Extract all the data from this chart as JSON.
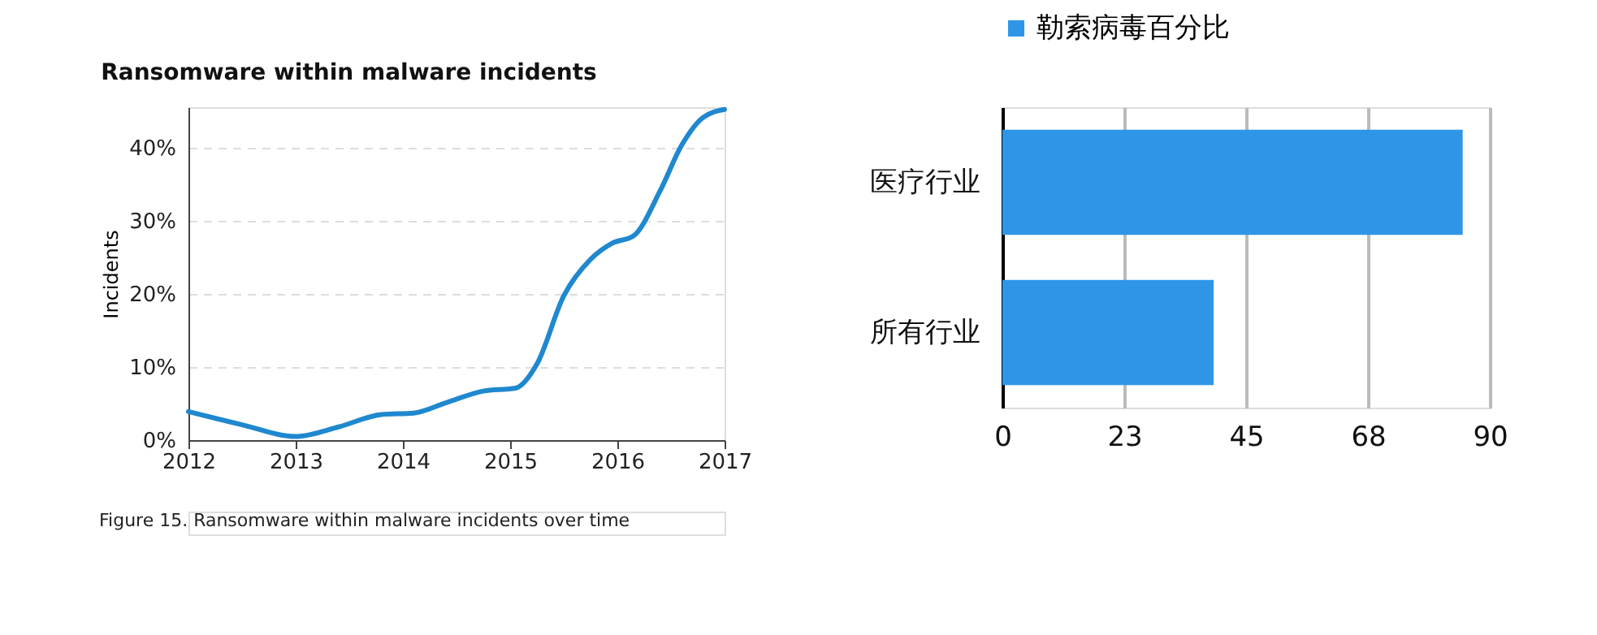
{
  "chart_data": [
    {
      "type": "line",
      "title": "Ransomware within malware incidents",
      "ylabel": "Incidents",
      "x": [
        2012,
        2012.5,
        2013,
        2013.4,
        2013.8,
        2014.1,
        2014.4,
        2014.75,
        2015.05,
        2015.25,
        2015.5,
        2015.75,
        2015.95,
        2016.15,
        2016.4,
        2016.6,
        2016.8,
        2017
      ],
      "series": [
        {
          "color": "#1f88cf",
          "values": [
            3.9,
            2.1,
            0.5,
            1.8,
            3.5,
            3.7,
            5.1,
            6.7,
            7.1,
            10.4,
            19.7,
            24.7,
            26.9,
            27.9,
            34.1,
            40.3,
            44.1,
            45.2
          ]
        }
      ],
      "xlim": [
        2012,
        2017
      ],
      "xticks": [
        2012,
        2013,
        2014,
        2015,
        2016,
        2017
      ],
      "ylim": [
        0,
        45.5
      ],
      "yticks": [
        {
          "value": 0,
          "label": "0%"
        },
        {
          "value": 10,
          "label": "10%"
        },
        {
          "value": 20,
          "label": "20%"
        },
        {
          "value": 30,
          "label": "30%"
        },
        {
          "value": 40,
          "label": "40%"
        }
      ],
      "grid": "y",
      "legend": false,
      "marker": "none",
      "line_style": "solid",
      "annotations": [
        "Figure 15.  Ransomware within malware incidents over time"
      ]
    },
    {
      "type": "bar",
      "orientation": "horizontal",
      "categories": [
        "医疗行业",
        "所有行业"
      ],
      "series": [
        {
          "name": "勒索病毒百分比",
          "color": "#2f95e6",
          "values": [
            85,
            39
          ]
        }
      ],
      "xlim": [
        0,
        90
      ],
      "xticks": [
        0,
        {
          "value": 22.5,
          "label": "23"
        },
        45,
        {
          "value": 67.5,
          "label": "68"
        },
        90
      ],
      "grid": "x",
      "legend": "top"
    }
  ]
}
